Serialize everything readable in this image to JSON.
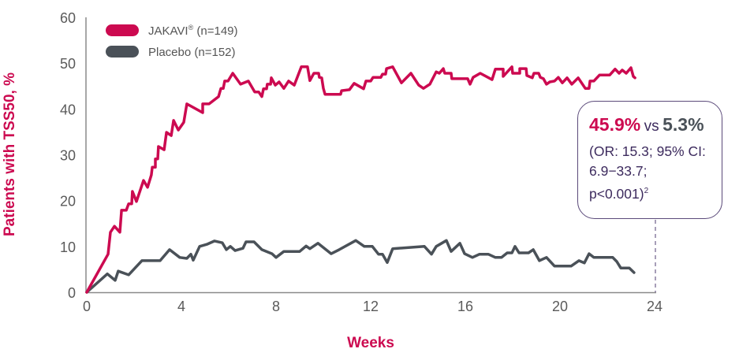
{
  "colors": {
    "jakavi": "#cc0a50",
    "placebo": "#4a5158",
    "callout_border": "#5b4a7a",
    "callout_text": "#3d2b5e"
  },
  "callout": {
    "jakavi_value": "45.9%",
    "vs": "vs",
    "placebo_value": "5.3%",
    "stats_line1": "(OR: 15.3; 95% CI:",
    "stats_line2": "6.9−33.7;",
    "stats_line3": "p<0.001)",
    "footnote": "2"
  },
  "chart_data": {
    "type": "line",
    "xlabel": "Weeks",
    "ylabel": "Patients with TSS50, %",
    "xlim": [
      0,
      24
    ],
    "ylim": [
      0,
      60
    ],
    "xticks": [
      "0",
      "4",
      "8",
      "12",
      "16",
      "20",
      "24"
    ],
    "yticks": [
      "0",
      "10",
      "20",
      "30",
      "40",
      "50",
      "60"
    ],
    "grid": false,
    "legend_position": "top-left",
    "series": [
      {
        "name": "JAKAVI® (n=149)",
        "legend_label": "JAKAVI",
        "legend_sup": "®",
        "legend_suffix": " (n=149)",
        "color": "#cc0a50",
        "points": [
          [
            0,
            0
          ],
          [
            0.9,
            8.3
          ],
          [
            1.0,
            13.1
          ],
          [
            1.17,
            14.4
          ],
          [
            1.4,
            13.1
          ],
          [
            1.47,
            17.9
          ],
          [
            1.67,
            17.9
          ],
          [
            1.77,
            19.3
          ],
          [
            1.9,
            19.3
          ],
          [
            1.93,
            22.0
          ],
          [
            2.1,
            19.8
          ],
          [
            2.4,
            24.4
          ],
          [
            2.57,
            22.9
          ],
          [
            2.73,
            25.6
          ],
          [
            2.77,
            27.3
          ],
          [
            2.9,
            27.3
          ],
          [
            2.9,
            29.1
          ],
          [
            3.0,
            29.1
          ],
          [
            3.03,
            31.8
          ],
          [
            3.27,
            31.1
          ],
          [
            3.37,
            34.9
          ],
          [
            3.57,
            34.2
          ],
          [
            3.67,
            37.5
          ],
          [
            3.87,
            35.4
          ],
          [
            4.1,
            37.1
          ],
          [
            4.23,
            41.1
          ],
          [
            4.9,
            39.2
          ],
          [
            4.9,
            41.1
          ],
          [
            5.17,
            41.1
          ],
          [
            5.57,
            42.7
          ],
          [
            5.67,
            44.5
          ],
          [
            5.77,
            44.5
          ],
          [
            5.83,
            46.1
          ],
          [
            5.97,
            46.1
          ],
          [
            6.17,
            47.8
          ],
          [
            6.5,
            45.4
          ],
          [
            6.83,
            46.1
          ],
          [
            7.1,
            43.7
          ],
          [
            7.27,
            43.7
          ],
          [
            7.4,
            42.7
          ],
          [
            7.47,
            44.4
          ],
          [
            7.6,
            44.4
          ],
          [
            7.63,
            45.4
          ],
          [
            7.77,
            45.4
          ],
          [
            7.8,
            46.8
          ],
          [
            7.97,
            45.2
          ],
          [
            8.13,
            45.9
          ],
          [
            8.33,
            44.5
          ],
          [
            8.53,
            46.1
          ],
          [
            8.77,
            45.2
          ],
          [
            9.07,
            49.2
          ],
          [
            9.33,
            49.2
          ],
          [
            9.43,
            46.2
          ],
          [
            9.6,
            47.8
          ],
          [
            9.8,
            47.8
          ],
          [
            9.83,
            46.9
          ],
          [
            9.93,
            46.8
          ],
          [
            10.0,
            44.5
          ],
          [
            10.07,
            43.2
          ],
          [
            10.73,
            43.2
          ],
          [
            10.77,
            44.0
          ],
          [
            11.1,
            44.2
          ],
          [
            11.3,
            45.6
          ],
          [
            11.7,
            44.4
          ],
          [
            11.8,
            46.1
          ],
          [
            12.0,
            46.1
          ],
          [
            12.1,
            46.9
          ],
          [
            12.43,
            46.9
          ],
          [
            12.5,
            47.6
          ],
          [
            12.63,
            47.6
          ],
          [
            12.67,
            48.8
          ],
          [
            12.93,
            49.2
          ],
          [
            13.3,
            45.7
          ],
          [
            13.7,
            47.8
          ],
          [
            14.03,
            45.2
          ],
          [
            14.23,
            44.5
          ],
          [
            14.5,
            45.4
          ],
          [
            14.67,
            47.1
          ],
          [
            14.77,
            48.1
          ],
          [
            14.9,
            47.8
          ],
          [
            15.07,
            48.8
          ],
          [
            15.13,
            47.8
          ],
          [
            15.4,
            47.8
          ],
          [
            15.43,
            46.6
          ],
          [
            16.1,
            46.6
          ],
          [
            16.2,
            45.4
          ],
          [
            16.33,
            46.9
          ],
          [
            16.63,
            47.8
          ],
          [
            17.13,
            46.4
          ],
          [
            17.27,
            48.7
          ],
          [
            17.6,
            48.7
          ],
          [
            17.6,
            47.1
          ],
          [
            17.97,
            49.2
          ],
          [
            18.0,
            47.8
          ],
          [
            18.3,
            47.8
          ],
          [
            18.3,
            48.8
          ],
          [
            18.57,
            48.8
          ],
          [
            18.6,
            47.3
          ],
          [
            18.83,
            46.8
          ],
          [
            18.9,
            47.8
          ],
          [
            19.1,
            47.8
          ],
          [
            19.17,
            46.9
          ],
          [
            19.3,
            46.6
          ],
          [
            19.43,
            45.4
          ],
          [
            19.57,
            45.9
          ],
          [
            19.77,
            46.1
          ],
          [
            19.93,
            46.9
          ],
          [
            20.1,
            45.7
          ],
          [
            20.3,
            46.8
          ],
          [
            20.5,
            45.4
          ],
          [
            20.77,
            46.8
          ],
          [
            21.07,
            44.5
          ],
          [
            21.23,
            44.5
          ],
          [
            21.27,
            46.1
          ],
          [
            21.43,
            46.1
          ],
          [
            21.67,
            47.4
          ],
          [
            22.1,
            47.4
          ],
          [
            22.33,
            48.7
          ],
          [
            22.5,
            47.8
          ],
          [
            22.63,
            48.5
          ],
          [
            22.8,
            47.8
          ],
          [
            23.0,
            49.0
          ],
          [
            23.1,
            47.1
          ],
          [
            23.17,
            46.8
          ]
        ]
      },
      {
        "name": "Placebo (n=152)",
        "legend_label": "Placebo (n=152)",
        "color": "#4a5158",
        "points": [
          [
            0,
            0
          ],
          [
            0.87,
            4.0
          ],
          [
            1.2,
            2.6
          ],
          [
            1.33,
            4.6
          ],
          [
            1.77,
            3.8
          ],
          [
            2.33,
            6.9
          ],
          [
            3.1,
            6.9
          ],
          [
            3.5,
            9.3
          ],
          [
            3.93,
            7.6
          ],
          [
            4.23,
            7.4
          ],
          [
            4.4,
            8.3
          ],
          [
            4.5,
            7.0
          ],
          [
            4.77,
            10.0
          ],
          [
            5.1,
            10.5
          ],
          [
            5.4,
            11.2
          ],
          [
            5.73,
            10.8
          ],
          [
            5.9,
            9.3
          ],
          [
            6.07,
            10.0
          ],
          [
            6.27,
            9.1
          ],
          [
            6.6,
            9.6
          ],
          [
            6.73,
            11.0
          ],
          [
            7.07,
            11.0
          ],
          [
            7.4,
            9.3
          ],
          [
            7.83,
            8.4
          ],
          [
            8.0,
            7.6
          ],
          [
            8.33,
            8.9
          ],
          [
            9.0,
            8.9
          ],
          [
            9.27,
            10.1
          ],
          [
            9.43,
            9.5
          ],
          [
            9.77,
            10.7
          ],
          [
            10.33,
            8.4
          ],
          [
            10.67,
            9.3
          ],
          [
            11.37,
            11.3
          ],
          [
            11.73,
            10.0
          ],
          [
            12.07,
            10.0
          ],
          [
            12.33,
            8.3
          ],
          [
            12.5,
            8.3
          ],
          [
            12.7,
            6.5
          ],
          [
            12.93,
            9.5
          ],
          [
            14.27,
            10.0
          ],
          [
            14.57,
            8.3
          ],
          [
            14.77,
            10.0
          ],
          [
            15.2,
            11.3
          ],
          [
            15.4,
            8.9
          ],
          [
            15.77,
            10.7
          ],
          [
            15.97,
            8.4
          ],
          [
            16.3,
            7.6
          ],
          [
            16.6,
            8.3
          ],
          [
            16.97,
            8.3
          ],
          [
            17.27,
            7.6
          ],
          [
            17.53,
            7.6
          ],
          [
            17.77,
            8.6
          ],
          [
            17.97,
            8.6
          ],
          [
            18.1,
            10.0
          ],
          [
            18.27,
            8.6
          ],
          [
            18.67,
            8.6
          ],
          [
            18.87,
            9.3
          ],
          [
            19.13,
            6.9
          ],
          [
            19.43,
            7.6
          ],
          [
            19.77,
            5.7
          ],
          [
            20.47,
            5.7
          ],
          [
            20.8,
            6.9
          ],
          [
            21.03,
            6.4
          ],
          [
            21.23,
            8.4
          ],
          [
            21.43,
            7.6
          ],
          [
            22.23,
            7.6
          ],
          [
            22.4,
            6.7
          ],
          [
            22.57,
            5.3
          ],
          [
            22.93,
            5.3
          ],
          [
            23.13,
            4.3
          ]
        ]
      }
    ]
  }
}
